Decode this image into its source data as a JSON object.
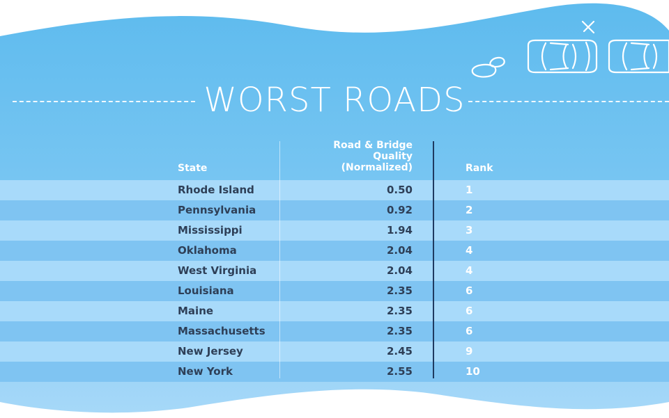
{
  "header": {
    "title": "WORST ROADS"
  },
  "colors": {
    "band_top": "#5ebbee",
    "band_bottom": "#a6d8f8",
    "stripe_light": "#a8dafa",
    "stripe_mid": "#7fc4f2",
    "state_text": "#2e3f57",
    "rank_text": "#ffffff",
    "divider": "#1f3a60"
  },
  "decorations": [
    "car-icon",
    "car-icon",
    "puddle-icon",
    "sparkle-icon"
  ],
  "chart_data": {
    "type": "table",
    "title": "WORST ROADS",
    "columns": [
      "State",
      "Road & Bridge\nQuality\n(Normalized)",
      "Rank"
    ],
    "rows": [
      {
        "state": "Rhode Island",
        "quality": "0.50",
        "rank": "1"
      },
      {
        "state": "Pennsylvania",
        "quality": "0.92",
        "rank": "2"
      },
      {
        "state": "Mississippi",
        "quality": "1.94",
        "rank": "3"
      },
      {
        "state": "Oklahoma",
        "quality": "2.04",
        "rank": "4"
      },
      {
        "state": "West Virginia",
        "quality": "2.04",
        "rank": "4"
      },
      {
        "state": "Louisiana",
        "quality": "2.35",
        "rank": "6"
      },
      {
        "state": "Maine",
        "quality": "2.35",
        "rank": "6"
      },
      {
        "state": "Massachusetts",
        "quality": "2.35",
        "rank": "6"
      },
      {
        "state": "New Jersey",
        "quality": "2.45",
        "rank": "9"
      },
      {
        "state": "New York",
        "quality": "2.55",
        "rank": "10"
      }
    ]
  }
}
